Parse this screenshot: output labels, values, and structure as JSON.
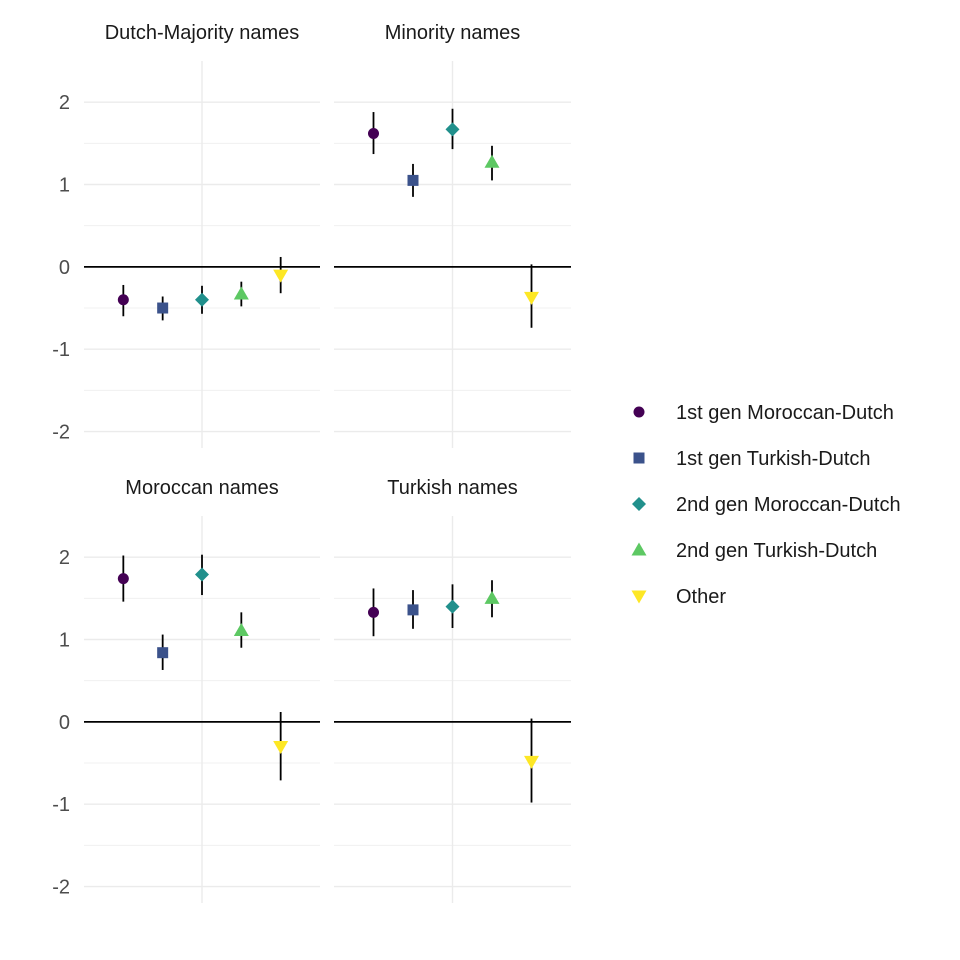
{
  "chart_data": {
    "type": "scatter",
    "subtype": "point-range faceted",
    "ylim": [
      -2.2,
      2.5
    ],
    "yticks": [
      -2,
      -1,
      0,
      1,
      2
    ],
    "ytick_labels": [
      "-2",
      "-1",
      "0",
      "1",
      "2"
    ],
    "reference_line": 0,
    "grid": true,
    "legend_position": "right",
    "groups": [
      {
        "name": "1st gen Moroccan-Dutch",
        "shape": "circle",
        "color": "#440154"
      },
      {
        "name": "1st gen Turkish-Dutch",
        "shape": "square",
        "color": "#3B528B"
      },
      {
        "name": "2nd gen Moroccan-Dutch",
        "shape": "diamond",
        "color": "#21908C"
      },
      {
        "name": "2nd gen Turkish-Dutch",
        "shape": "triangle-up",
        "color": "#5DC863"
      },
      {
        "name": "Other",
        "shape": "triangle-down",
        "color": "#FDE725"
      }
    ],
    "panels": [
      {
        "title": "Dutch-Majority names",
        "estimate": [
          -0.4,
          -0.5,
          -0.4,
          -0.33,
          -0.1
        ],
        "lower": [
          -0.6,
          -0.65,
          -0.57,
          -0.48,
          -0.32
        ],
        "upper": [
          -0.22,
          -0.36,
          -0.23,
          -0.18,
          0.12
        ]
      },
      {
        "title": "Minority names",
        "estimate": [
          1.62,
          1.05,
          1.67,
          1.27,
          -0.37
        ],
        "lower": [
          1.37,
          0.85,
          1.43,
          1.05,
          -0.74
        ],
        "upper": [
          1.88,
          1.25,
          1.92,
          1.47,
          0.03
        ]
      },
      {
        "title": "Moroccan names",
        "estimate": [
          1.74,
          0.84,
          1.79,
          1.11,
          -0.3
        ],
        "lower": [
          1.46,
          0.63,
          1.54,
          0.9,
          -0.71
        ],
        "upper": [
          2.02,
          1.06,
          2.03,
          1.33,
          0.12
        ]
      },
      {
        "title": "Turkish names",
        "estimate": [
          1.33,
          1.36,
          1.4,
          1.5,
          -0.48
        ],
        "lower": [
          1.04,
          1.13,
          1.14,
          1.27,
          -0.98
        ],
        "upper": [
          1.62,
          1.6,
          1.67,
          1.72,
          0.04
        ]
      }
    ]
  }
}
